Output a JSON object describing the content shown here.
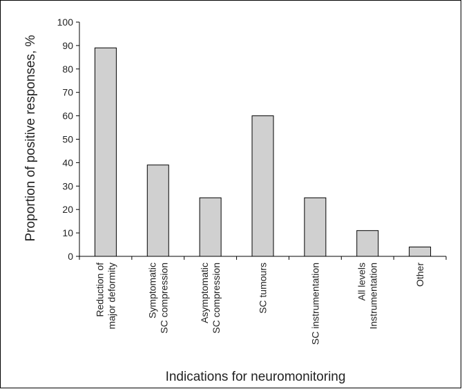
{
  "chart_data": {
    "type": "bar",
    "categories": [
      [
        "Reduction of",
        "major deformity"
      ],
      [
        "Symptomatic",
        "SC compression"
      ],
      [
        "Asymptomatic",
        "SC compression"
      ],
      [
        "SC tumours"
      ],
      [
        "SC instrumentation"
      ],
      [
        "All levels",
        "Instrumentation"
      ],
      [
        "Other"
      ]
    ],
    "values": [
      89,
      39,
      25,
      60,
      25,
      11,
      4
    ],
    "ylim": [
      0,
      100
    ],
    "yticks": [
      "0",
      "10",
      "20",
      "30",
      "40",
      "50",
      "60",
      "70",
      "80",
      "90",
      "100"
    ],
    "ylabel": "Proportion of positive responses, %",
    "xlabel": "Indications for neuromonitoring",
    "grid": false,
    "bar_fill": "#d0d0d0",
    "bar_stroke": "#000000"
  }
}
